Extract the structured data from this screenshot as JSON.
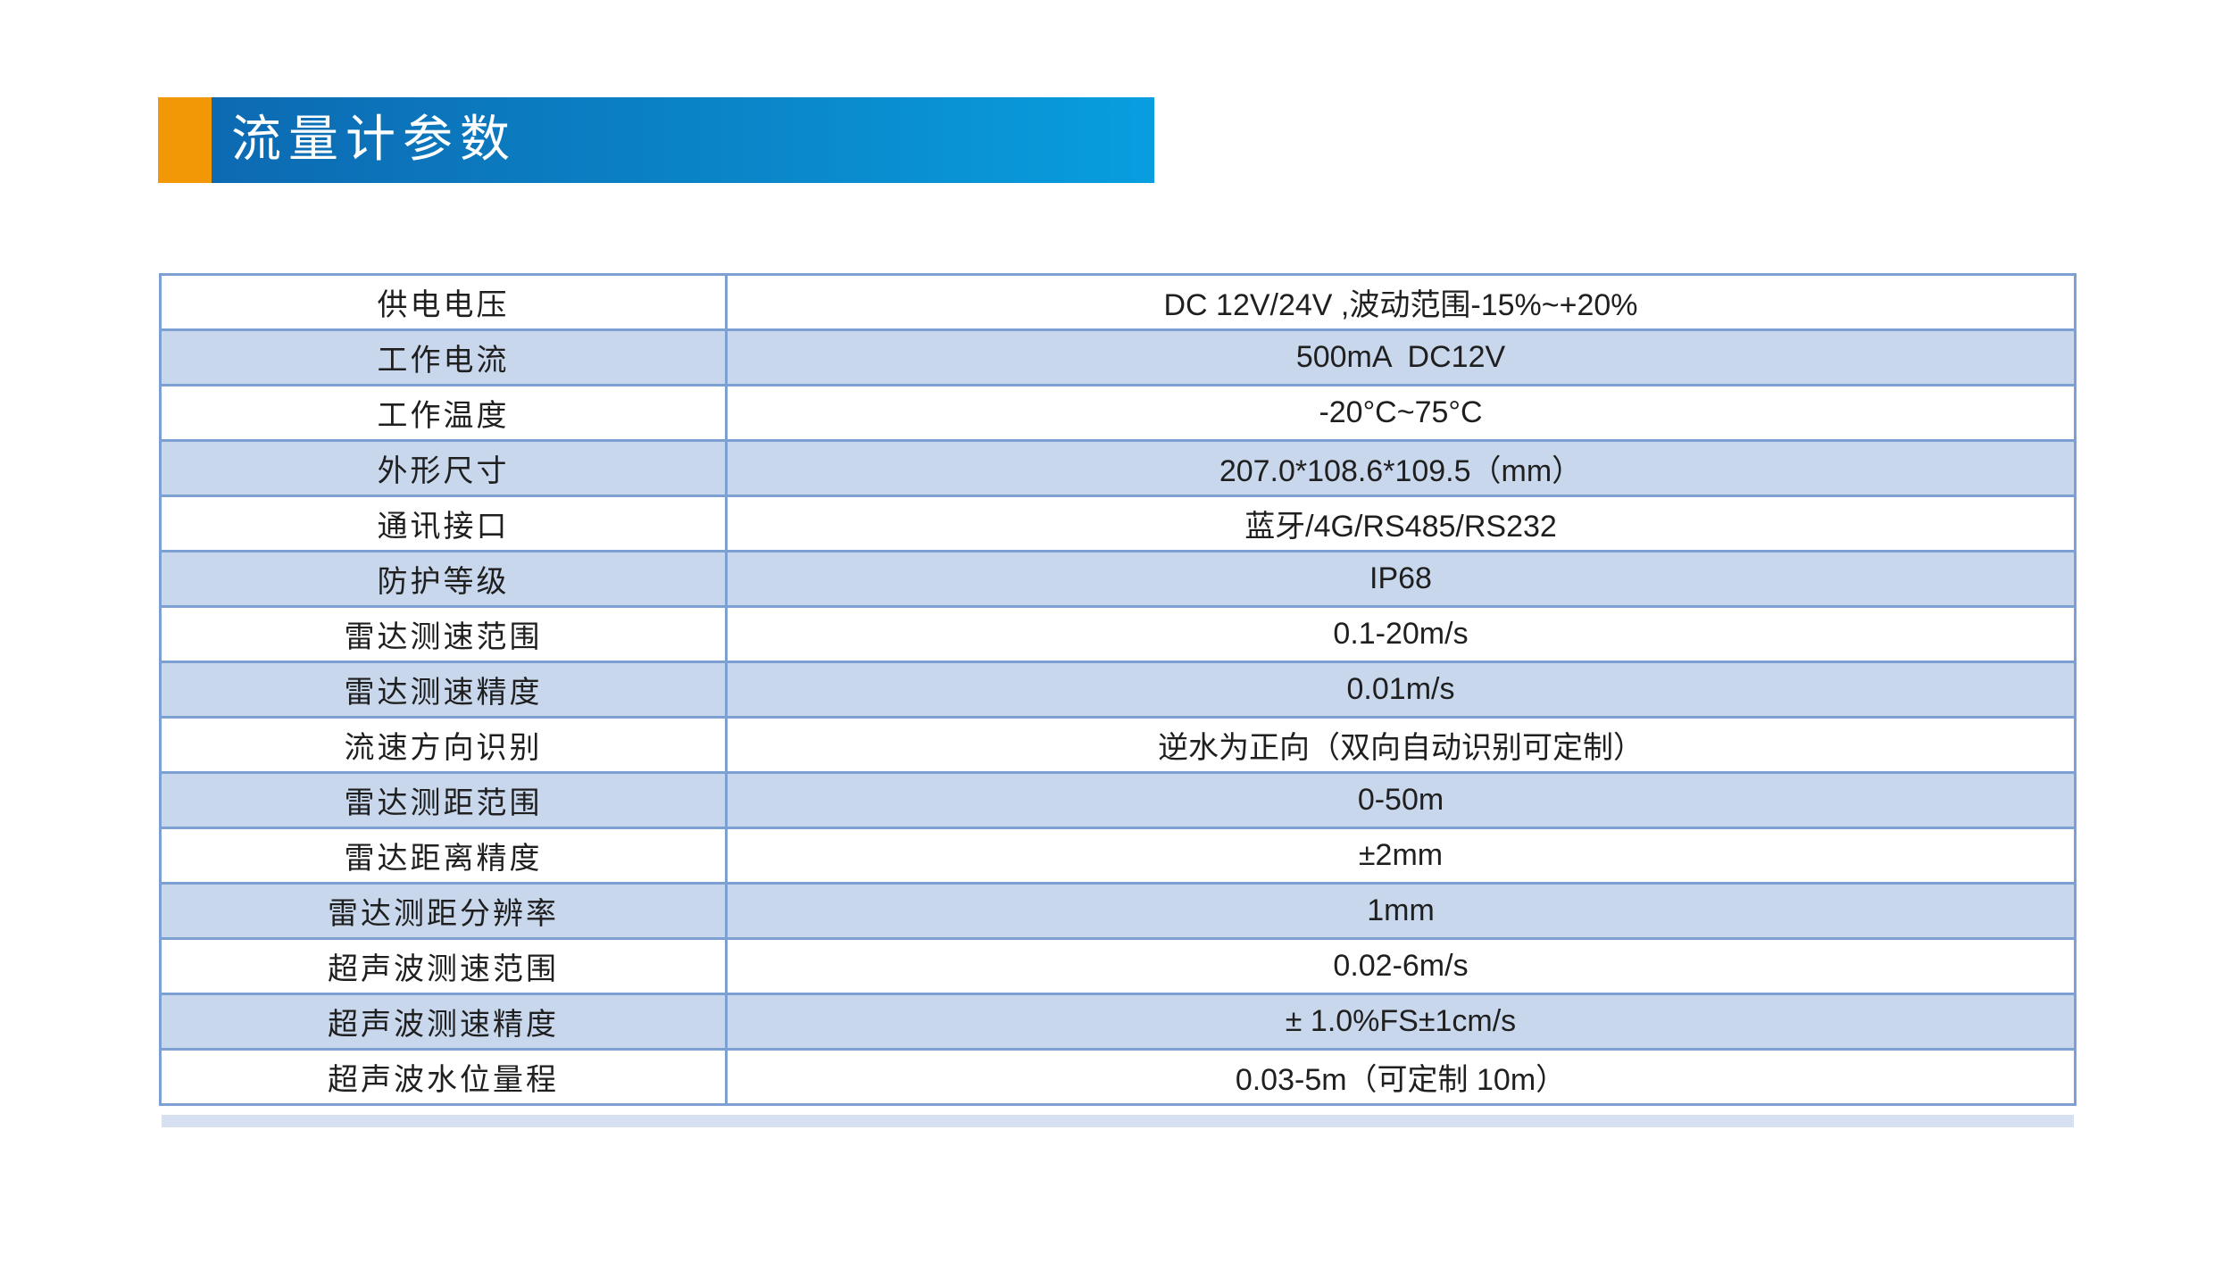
{
  "banner": {
    "title": "流量计参数",
    "accent_orange": "#f29806",
    "gradient_left": "#0d6ab2",
    "gradient_right": "#089edf",
    "text_color": "#ffffff"
  },
  "table": {
    "alt_row_fill": "#c8d7ec",
    "border_color": "#7da0d2",
    "text_color": "#1f1f1f",
    "partial_row_fill": "#d5e1f0",
    "rows": [
      {
        "param": "供电电压",
        "value": "DC 12V/24V ,波动范围-15%~+20%"
      },
      {
        "param": "工作电流",
        "value": "500mA  DC12V"
      },
      {
        "param": "工作温度",
        "value": "-20°C~75°C"
      },
      {
        "param": "外形尺寸",
        "value": "207.0*108.6*109.5（mm）"
      },
      {
        "param": "通讯接口",
        "value": "蓝牙/4G/RS485/RS232"
      },
      {
        "param": "防护等级",
        "value": "IP68"
      },
      {
        "param": "雷达测速范围",
        "value": "0.1-20m/s"
      },
      {
        "param": "雷达测速精度",
        "value": "0.01m/s"
      },
      {
        "param": "流速方向识别",
        "value": "逆水为正向（双向自动识别可定制）"
      },
      {
        "param": "雷达测距范围",
        "value": "0-50m"
      },
      {
        "param": "雷达距离精度",
        "value": "±2mm"
      },
      {
        "param": "雷达测距分辨率",
        "value": "1mm"
      },
      {
        "param": "超声波测速范围",
        "value": "0.02-6m/s"
      },
      {
        "param": "超声波测速精度",
        "value": "± 1.0%FS±1cm/s"
      },
      {
        "param": "超声波水位量程",
        "value": "0.03-5m（可定制 10m）"
      }
    ]
  }
}
